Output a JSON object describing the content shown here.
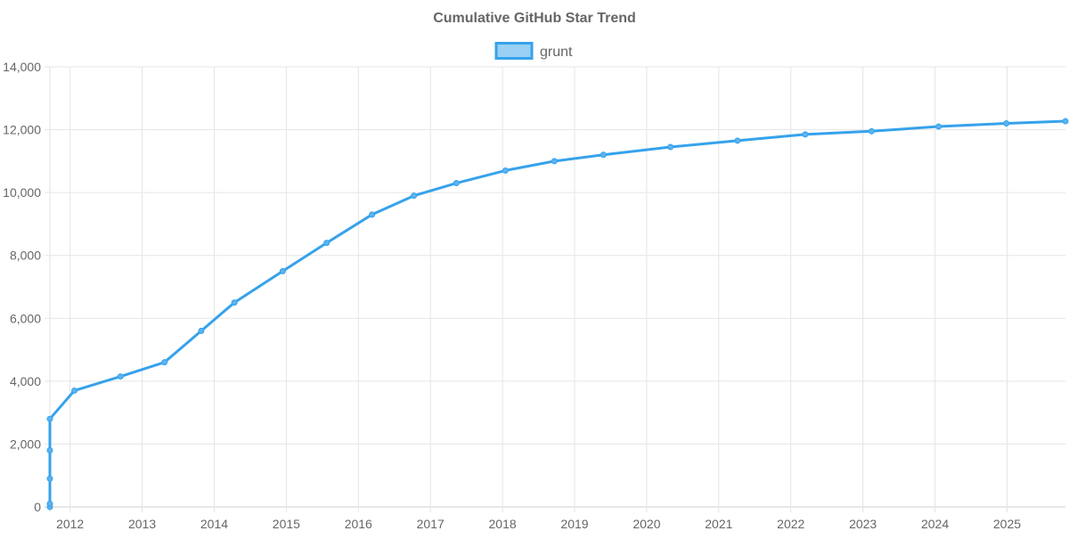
{
  "chart_data": {
    "type": "line",
    "title": "Cumulative GitHub Star Trend",
    "xlabel": "",
    "ylabel": "",
    "legend": {
      "position": "top",
      "entries": [
        "grunt"
      ]
    },
    "grid": true,
    "xlim": [
      2011.72,
      2025.81
    ],
    "ylim": [
      0,
      14000
    ],
    "x_ticks": [
      "2012",
      "2013",
      "2014",
      "2015",
      "2016",
      "2017",
      "2018",
      "2019",
      "2020",
      "2021",
      "2022",
      "2023",
      "2024",
      "2025"
    ],
    "y_ticks": [
      "0",
      "2,000",
      "4,000",
      "6,000",
      "8,000",
      "10,000",
      "12,000",
      "14,000"
    ],
    "colors": {
      "line": "#36a2eb",
      "fill": "#9ad0f5",
      "grid": "#e5e5e5",
      "text": "#666666"
    },
    "series": [
      {
        "name": "grunt",
        "x": [
          2011.72,
          2011.72,
          2011.72,
          2011.72,
          2011.72,
          2012.06,
          2012.7,
          2013.31,
          2013.82,
          2014.28,
          2014.95,
          2015.56,
          2016.19,
          2016.77,
          2017.36,
          2018.04,
          2018.72,
          2019.4,
          2020.33,
          2021.26,
          2022.2,
          2023.12,
          2024.05,
          2024.99,
          2025.81
        ],
        "y": [
          0,
          100,
          900,
          1800,
          2800,
          3700,
          4150,
          4600,
          5600,
          6500,
          7500,
          8400,
          9300,
          9900,
          10300,
          10700,
          11000,
          11200,
          11450,
          11650,
          11850,
          11950,
          12100,
          12200,
          12270
        ]
      }
    ]
  }
}
